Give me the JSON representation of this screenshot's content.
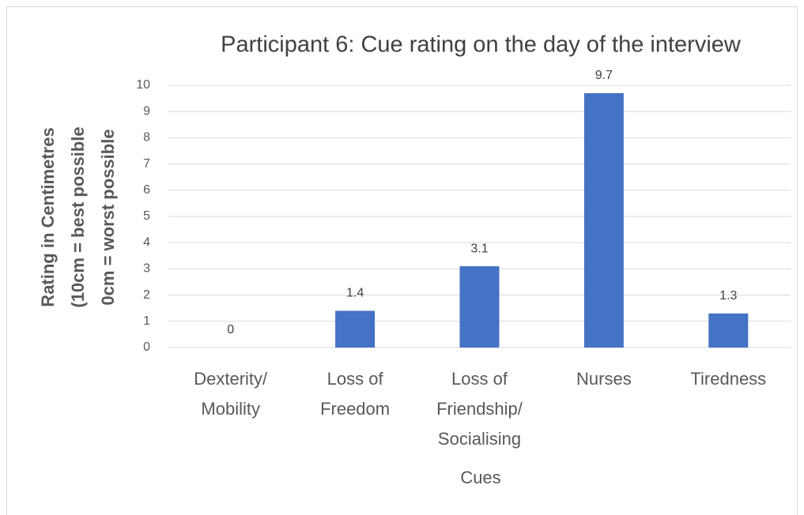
{
  "chart_data": {
    "type": "bar",
    "title": "Participant 6: Cue rating on the day of the interview",
    "ylabel": [
      "Rating in Centimetres",
      "(10cm = best possible",
      "0cm = worst possible"
    ],
    "xlabel": "Cues",
    "categories": [
      [
        "Dexterity/",
        "Mobility"
      ],
      [
        "Loss of",
        "Freedom"
      ],
      [
        "Loss of",
        "Friendship/",
        "Socialising"
      ],
      [
        "Nurses"
      ],
      [
        "Tiredness"
      ]
    ],
    "values": [
      0,
      1.4,
      3.1,
      9.7,
      1.3
    ],
    "color": "#4472c4",
    "ylim": [
      0,
      10
    ],
    "yticks": [
      0,
      1,
      2,
      3,
      4,
      5,
      6,
      7,
      8,
      9,
      10
    ],
    "grid": true
  }
}
